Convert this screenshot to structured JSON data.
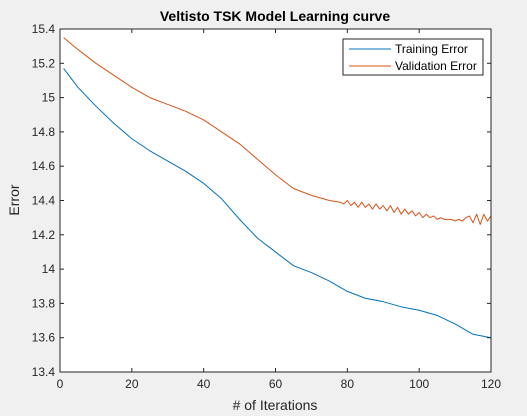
{
  "chart_data": {
    "type": "line",
    "title": "Veltisto TSK Model Learning curve",
    "xlabel": "# of Iterations",
    "ylabel": "Error",
    "xlim": [
      0,
      120
    ],
    "ylim": [
      13.4,
      15.4
    ],
    "xticks": [
      0,
      20,
      40,
      60,
      80,
      100,
      120
    ],
    "yticks": [
      13.4,
      13.6,
      13.8,
      14,
      14.2,
      14.4,
      14.6,
      14.8,
      15,
      15.2,
      15.4
    ],
    "xtick_labels": [
      "0",
      "20",
      "40",
      "60",
      "80",
      "100",
      "120"
    ],
    "ytick_labels": [
      "13.4",
      "13.6",
      "13.8",
      "14",
      "14.2",
      "14.4",
      "14.6",
      "14.8",
      "15",
      "15.2",
      "15.4"
    ],
    "grid": false,
    "legend_position": "top-right",
    "series": [
      {
        "name": "Training Error",
        "color": "#0072bd",
        "x": [
          1,
          5,
          10,
          15,
          20,
          25,
          30,
          35,
          40,
          45,
          50,
          55,
          60,
          65,
          70,
          75,
          80,
          85,
          90,
          95,
          100,
          105,
          110,
          115,
          120
        ],
        "y": [
          15.17,
          15.06,
          14.95,
          14.85,
          14.76,
          14.69,
          14.63,
          14.57,
          14.5,
          14.41,
          14.29,
          14.18,
          14.1,
          14.02,
          13.98,
          13.93,
          13.87,
          13.83,
          13.81,
          13.78,
          13.76,
          13.73,
          13.68,
          13.62,
          13.6
        ]
      },
      {
        "name": "Validation Error",
        "color": "#d95319",
        "x": [
          1,
          5,
          10,
          15,
          20,
          25,
          30,
          35,
          40,
          45,
          50,
          55,
          60,
          65,
          70,
          75,
          78,
          79,
          80,
          81,
          82,
          83,
          84,
          85,
          86,
          87,
          88,
          89,
          90,
          91,
          92,
          93,
          94,
          95,
          96,
          97,
          98,
          99,
          100,
          101,
          102,
          103,
          104,
          105,
          106,
          107,
          108,
          109,
          110,
          111,
          112,
          113,
          114,
          115,
          116,
          117,
          118,
          119,
          120
        ],
        "y": [
          15.35,
          15.28,
          15.2,
          15.13,
          15.06,
          15.0,
          14.96,
          14.92,
          14.87,
          14.8,
          14.73,
          14.64,
          14.55,
          14.47,
          14.43,
          14.4,
          14.39,
          14.38,
          14.4,
          14.37,
          14.39,
          14.36,
          14.39,
          14.36,
          14.38,
          14.35,
          14.38,
          14.35,
          14.37,
          14.34,
          14.37,
          14.33,
          14.36,
          14.32,
          14.35,
          14.32,
          14.34,
          14.31,
          14.33,
          14.3,
          14.32,
          14.3,
          14.31,
          14.29,
          14.3,
          14.29,
          14.29,
          14.29,
          14.28,
          14.29,
          14.28,
          14.3,
          14.31,
          14.27,
          14.32,
          14.26,
          14.32,
          14.28,
          14.31
        ]
      }
    ]
  }
}
